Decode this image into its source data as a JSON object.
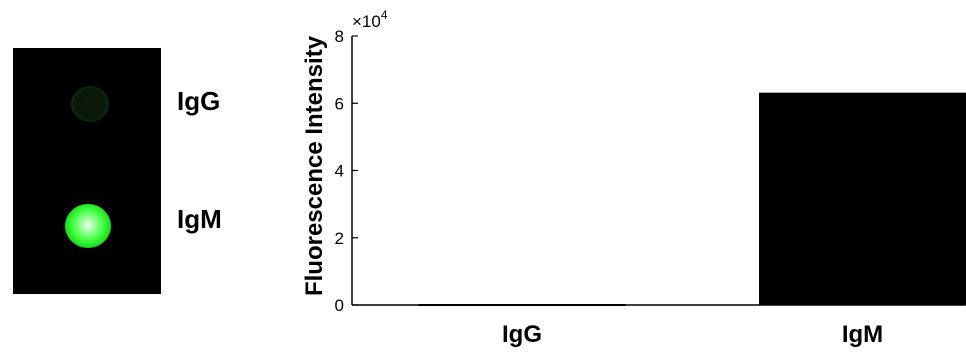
{
  "image_panel": {
    "spot_labels": [
      "IgG",
      "IgM"
    ]
  },
  "chart_data": {
    "type": "bar",
    "categories": [
      "IgG",
      "IgM"
    ],
    "values": [
      150,
      63000
    ],
    "ylabel": "Fluorescence  Intensity",
    "ylim": [
      0,
      80000
    ],
    "yticks": [
      "0",
      "2",
      "4",
      "6",
      "8"
    ],
    "y_exponent_base": "×10",
    "y_exponent_power": "4",
    "bar_color": "#000000",
    "grid": false
  }
}
